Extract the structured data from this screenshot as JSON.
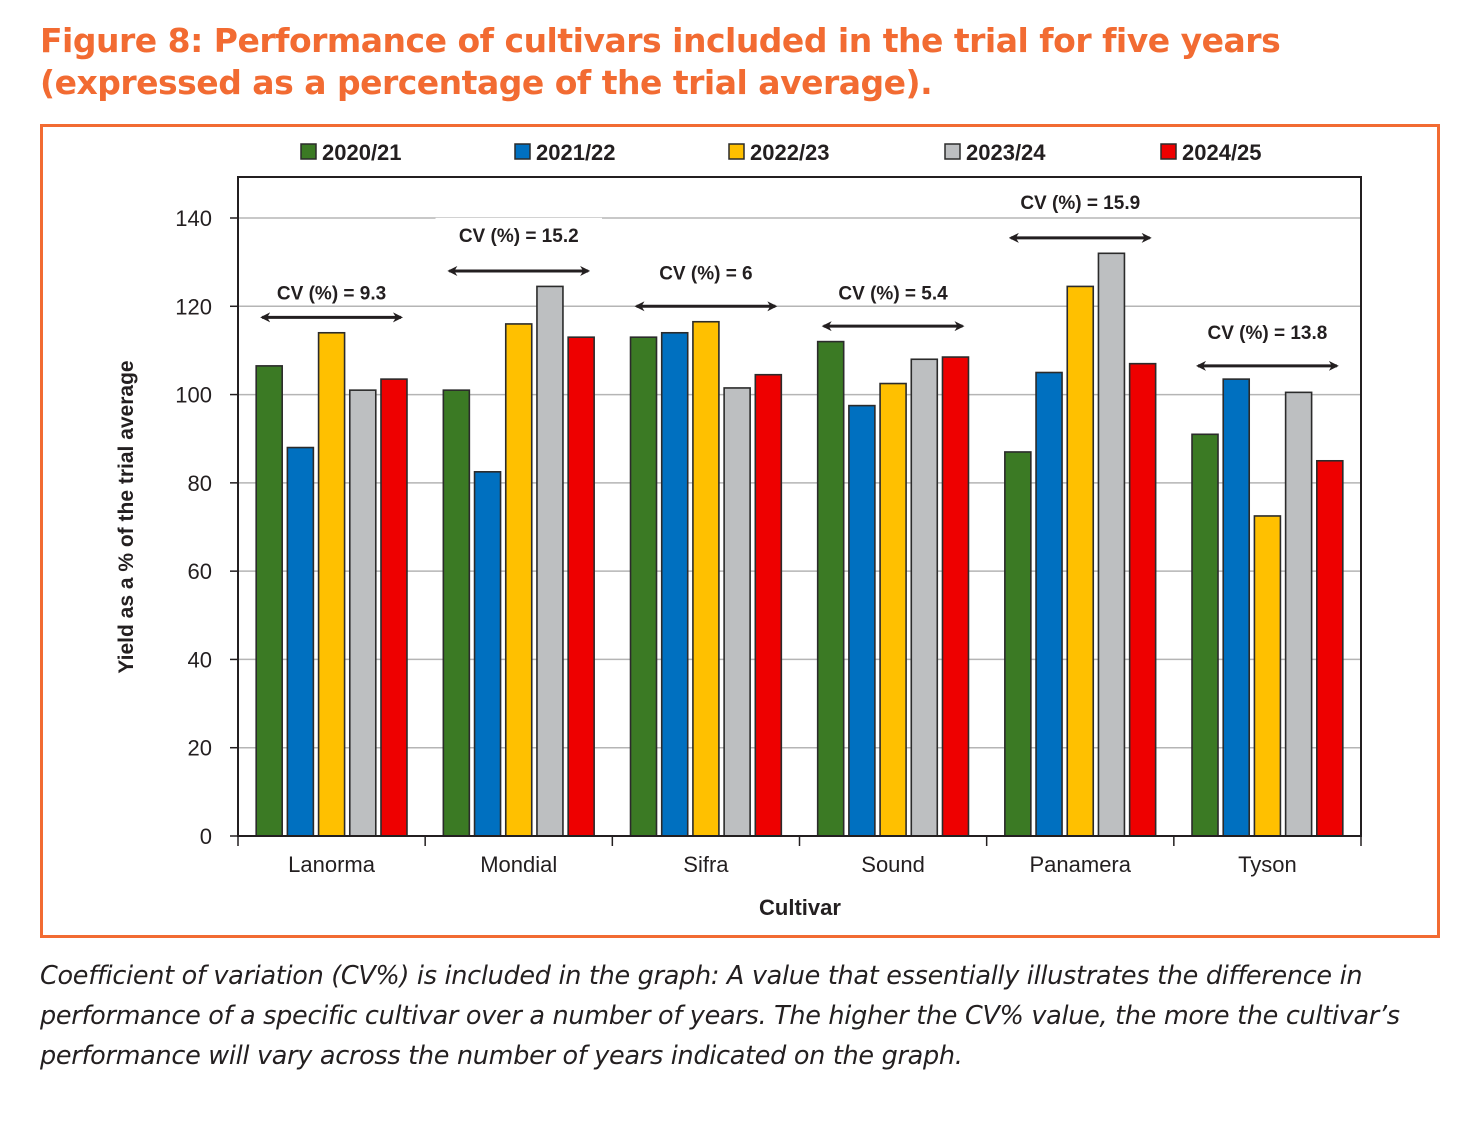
{
  "figure": {
    "title": "Figure 8: Performance of cultivars included in the trial for five years (expressed as a percentage of the trial average).",
    "caption": "Coefficient of variation (CV%) is included in the graph: A value that essentially illustrates the difference in performance of a specific cultivar over a number of years. The higher the CV% value, the more the cultivar’s performance will vary across the number of years indicated on the graph.",
    "accent_color": "#f26b32"
  },
  "chart_data": {
    "type": "bar",
    "title": "",
    "xlabel": "Cultivar",
    "ylabel": "Yield as a % of the  trial average",
    "ylim": [
      0,
      150
    ],
    "yticks": [
      0,
      20,
      40,
      60,
      80,
      100,
      120,
      140
    ],
    "grid": true,
    "legend_position": "top",
    "categories": [
      "Lanorma",
      "Mondial",
      "Sifra",
      "Sound",
      "Panamera",
      "Tyson"
    ],
    "series": [
      {
        "name": "2020/21",
        "color": "#3b7a24",
        "values": [
          106.5,
          101,
          113,
          112,
          87,
          91
        ]
      },
      {
        "name": "2021/22",
        "color": "#0070c0",
        "values": [
          88,
          82.5,
          114,
          97.5,
          105,
          103.5
        ]
      },
      {
        "name": "2022/23",
        "color": "#ffc000",
        "values": [
          114,
          116,
          116.5,
          102.5,
          124.5,
          72.5
        ]
      },
      {
        "name": "2023/24",
        "color": "#bdbfc1",
        "values": [
          101,
          124.5,
          101.5,
          108,
          132,
          100.5
        ]
      },
      {
        "name": "2024/25",
        "color": "#ee0000",
        "values": [
          103.5,
          113,
          104.5,
          108.5,
          107,
          85
        ]
      }
    ],
    "annotations": [
      {
        "category": "Lanorma",
        "text": "CV (%) = 9.3",
        "cv": 9.3,
        "arrow_level": 117.5,
        "label_level": 122.5
      },
      {
        "category": "Mondial",
        "text": "CV (%) = 15.2",
        "cv": 15.2,
        "arrow_level": 128,
        "label_level": 135.5
      },
      {
        "category": "Sifra",
        "text": "CV (%) = 6",
        "cv": 6,
        "arrow_level": 120,
        "label_level": 127
      },
      {
        "category": "Sound",
        "text": "CV (%) = 5.4",
        "cv": 5.4,
        "arrow_level": 115.5,
        "label_level": 122.5
      },
      {
        "category": "Panamera",
        "text": "CV (%) = 15.9",
        "cv": 15.9,
        "arrow_level": 135.5,
        "label_level": 143
      },
      {
        "category": "Tyson",
        "text": "CV (%) = 13.8",
        "cv": 13.8,
        "arrow_level": 106.5,
        "label_level": 113.5
      }
    ]
  }
}
